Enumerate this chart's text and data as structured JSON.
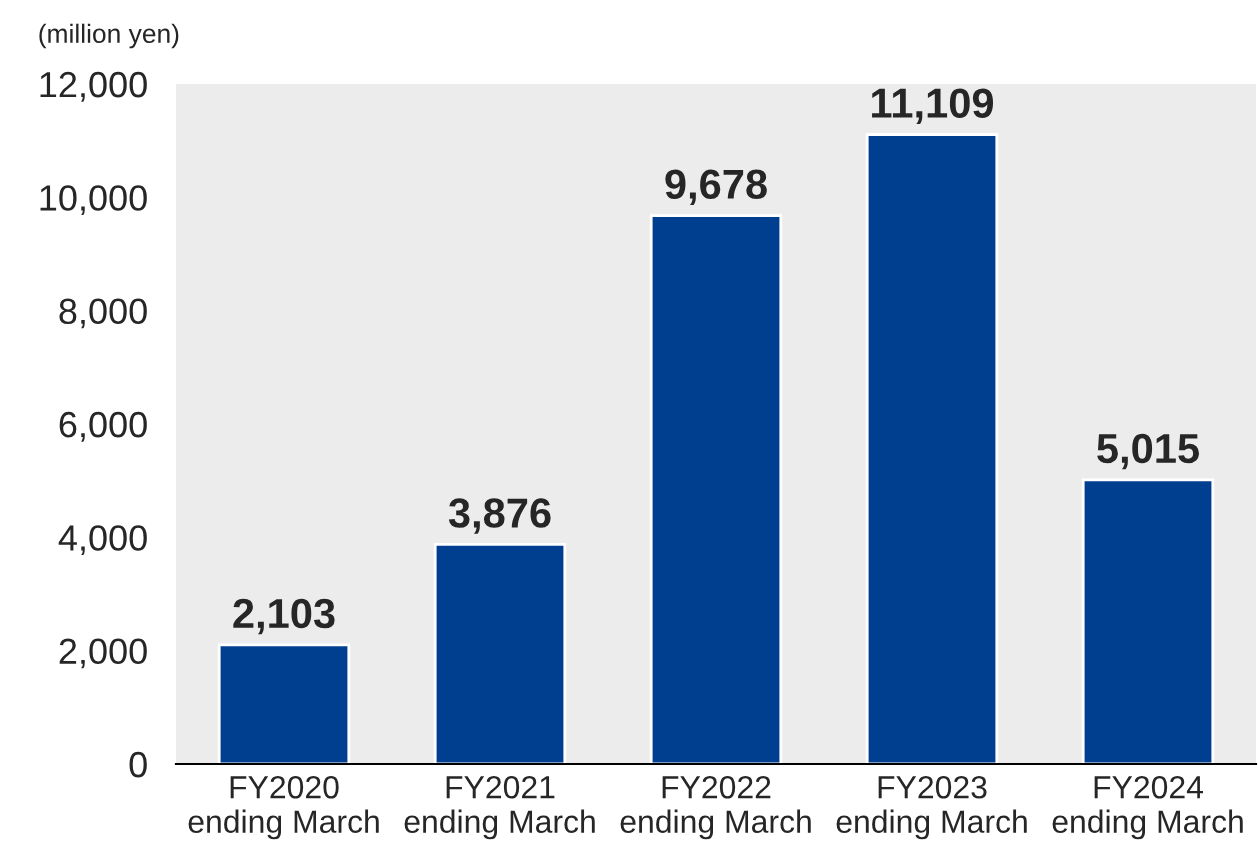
{
  "chart_data": {
    "type": "bar",
    "ylabel": "(million yen)",
    "categories": [
      "FY2020\nending March",
      "FY2021\nending March",
      "FY2022\nending March",
      "FY2023\nending March",
      "FY2024\nending March"
    ],
    "values": [
      2103,
      3876,
      9678,
      11109,
      5015
    ],
    "value_labels": [
      "2,103",
      "3,876",
      "9,678",
      "11,109",
      "5,015"
    ],
    "color": "#003f8f",
    "ylim": [
      0,
      12000
    ],
    "yticks": [
      0,
      {
        "value": 2000,
        "label": "2,000"
      },
      {
        "value": 4000,
        "label": "4,000"
      },
      {
        "value": 6000,
        "label": "6,000"
      },
      {
        "value": 8000,
        "label": "8,000"
      },
      {
        "value": 10000,
        "label": "10,000"
      },
      {
        "value": 12000,
        "label": "12,000"
      }
    ],
    "grid": false,
    "legend": false
  }
}
